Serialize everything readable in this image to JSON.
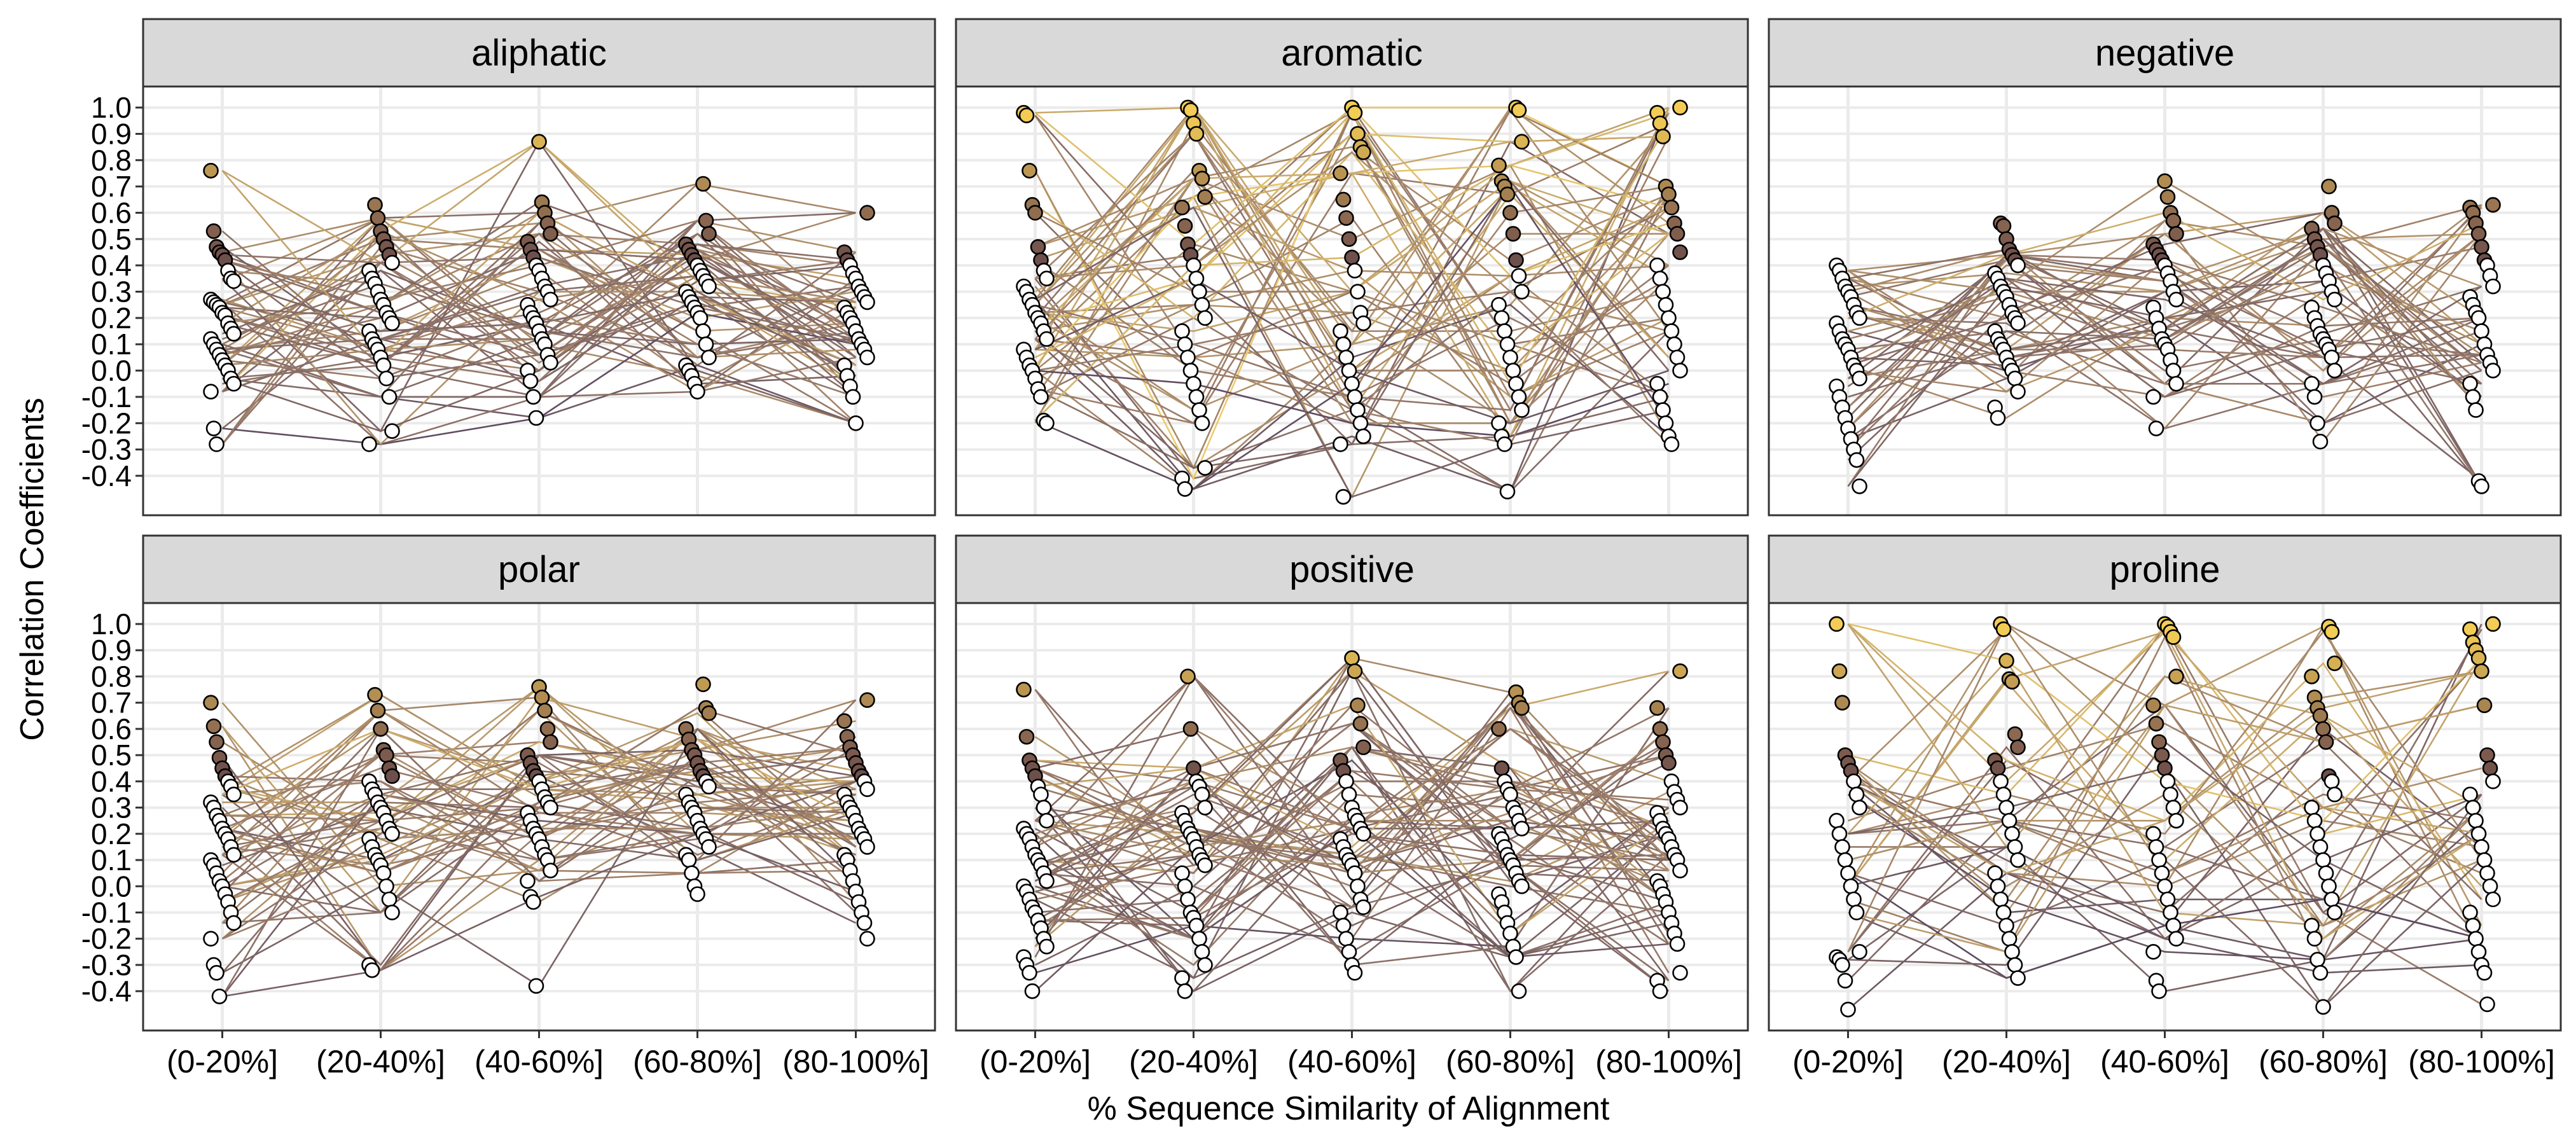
{
  "chart_data": {
    "type": "scatter",
    "layout": "faceted line-connected scatter, 2 rows x 3 columns",
    "xlabel": "% Sequence Similarity of Alignment",
    "ylabel": "Correlation Coefficients",
    "categories": [
      "(0-20%]",
      "(20-40%]",
      "(40-60%]",
      "(60-80%]",
      "(80-100%]"
    ],
    "y_ticks": [
      "1.0",
      "0.9",
      "0.8",
      "0.7",
      "0.6",
      "0.5",
      "0.4",
      "0.3",
      "0.2",
      "0.1",
      "0.0",
      "-0.1",
      "-0.2",
      "-0.3",
      "-0.4"
    ],
    "y_tick_values": [
      1.0,
      0.9,
      0.8,
      0.7,
      0.6,
      0.5,
      0.4,
      0.3,
      0.2,
      0.1,
      0.0,
      -0.1,
      -0.2,
      -0.3,
      -0.4
    ],
    "ylim": [
      -0.55,
      1.08
    ],
    "grid": true,
    "legend": "none",
    "colors": {
      "strip": "#d9d9d9",
      "panel_border": "#333333",
      "grid": "#ebebeb",
      "line_low": "#3f2a44",
      "line_mid": "#8a6650",
      "line_high": "#f2cc55",
      "point_nonsignificant": "#ffffff",
      "point_outline": "#000000"
    },
    "panels": [
      {
        "title": "aliphatic",
        "series_count": 60,
        "points_per_bin": [
          [
            0.76,
            0.53,
            0.47,
            0.45,
            0.44,
            0.42,
            0.38,
            0.35,
            0.34,
            0.27,
            0.26,
            0.25,
            0.24,
            0.22,
            0.21,
            0.18,
            0.16,
            0.14,
            0.12,
            0.1,
            0.08,
            0.06,
            0.04,
            0.02,
            0.0,
            -0.03,
            -0.05,
            -0.08,
            -0.22,
            -0.28
          ],
          [
            0.63,
            0.58,
            0.53,
            0.5,
            0.47,
            0.44,
            0.41,
            0.38,
            0.35,
            0.33,
            0.3,
            0.27,
            0.25,
            0.22,
            0.2,
            0.18,
            0.15,
            0.12,
            0.1,
            0.08,
            0.05,
            0.02,
            -0.03,
            -0.1,
            -0.23,
            -0.28
          ],
          [
            0.87,
            0.64,
            0.6,
            0.56,
            0.52,
            0.49,
            0.46,
            0.43,
            0.4,
            0.38,
            0.35,
            0.32,
            0.3,
            0.27,
            0.25,
            0.22,
            0.2,
            0.18,
            0.15,
            0.12,
            0.1,
            0.06,
            0.03,
            0.0,
            -0.04,
            -0.1,
            -0.18
          ],
          [
            0.71,
            0.57,
            0.52,
            0.48,
            0.46,
            0.44,
            0.42,
            0.4,
            0.38,
            0.36,
            0.34,
            0.32,
            0.3,
            0.28,
            0.26,
            0.24,
            0.22,
            0.2,
            0.15,
            0.1,
            0.05,
            0.02,
            0.0,
            -0.02,
            -0.05,
            -0.08
          ],
          [
            0.6,
            0.45,
            0.42,
            0.4,
            0.37,
            0.35,
            0.32,
            0.3,
            0.28,
            0.26,
            0.24,
            0.22,
            0.2,
            0.18,
            0.15,
            0.12,
            0.1,
            0.08,
            0.05,
            0.02,
            -0.02,
            -0.06,
            -0.1,
            -0.2
          ]
        ]
      },
      {
        "title": "aromatic",
        "series_count": 60,
        "points_per_bin": [
          [
            0.98,
            0.97,
            0.76,
            0.63,
            0.6,
            0.47,
            0.42,
            0.38,
            0.35,
            0.32,
            0.3,
            0.27,
            0.25,
            0.22,
            0.2,
            0.18,
            0.15,
            0.12,
            0.08,
            0.05,
            0.02,
            0.0,
            -0.03,
            -0.07,
            -0.1,
            -0.19,
            -0.2
          ],
          [
            1.0,
            0.99,
            0.94,
            0.9,
            0.76,
            0.73,
            0.66,
            0.62,
            0.55,
            0.48,
            0.44,
            0.4,
            0.35,
            0.3,
            0.25,
            0.2,
            0.15,
            0.1,
            0.05,
            0.0,
            -0.05,
            -0.1,
            -0.15,
            -0.2,
            -0.37,
            -0.41,
            -0.45
          ],
          [
            1.0,
            0.98,
            0.9,
            0.85,
            0.83,
            0.75,
            0.65,
            0.58,
            0.5,
            0.43,
            0.38,
            0.3,
            0.22,
            0.18,
            0.15,
            0.1,
            0.05,
            0.0,
            -0.05,
            -0.1,
            -0.15,
            -0.2,
            -0.25,
            -0.28,
            -0.48
          ],
          [
            1.0,
            0.99,
            0.87,
            0.78,
            0.72,
            0.7,
            0.67,
            0.6,
            0.52,
            0.42,
            0.36,
            0.3,
            0.25,
            0.2,
            0.15,
            0.1,
            0.05,
            0.0,
            -0.05,
            -0.1,
            -0.15,
            -0.2,
            -0.25,
            -0.28,
            -0.46
          ],
          [
            1.0,
            0.98,
            0.94,
            0.89,
            0.7,
            0.67,
            0.62,
            0.56,
            0.52,
            0.45,
            0.4,
            0.35,
            0.3,
            0.25,
            0.2,
            0.15,
            0.1,
            0.05,
            0.0,
            -0.05,
            -0.1,
            -0.15,
            -0.2,
            -0.25,
            -0.28
          ]
        ]
      },
      {
        "title": "negative",
        "series_count": 45,
        "points_per_bin": [
          [
            0.4,
            0.38,
            0.35,
            0.32,
            0.3,
            0.28,
            0.25,
            0.22,
            0.2,
            0.18,
            0.15,
            0.12,
            0.1,
            0.08,
            0.05,
            0.02,
            0.0,
            -0.03,
            -0.06,
            -0.1,
            -0.14,
            -0.18,
            -0.22,
            -0.26,
            -0.3,
            -0.34,
            -0.44
          ],
          [
            0.56,
            0.55,
            0.5,
            0.46,
            0.44,
            0.42,
            0.4,
            0.37,
            0.35,
            0.32,
            0.3,
            0.28,
            0.25,
            0.22,
            0.2,
            0.18,
            0.15,
            0.12,
            0.1,
            0.08,
            0.05,
            0.02,
            0.0,
            -0.03,
            -0.08,
            -0.14,
            -0.18
          ],
          [
            0.72,
            0.66,
            0.6,
            0.57,
            0.52,
            0.48,
            0.46,
            0.44,
            0.42,
            0.4,
            0.37,
            0.34,
            0.3,
            0.27,
            0.24,
            0.2,
            0.16,
            0.12,
            0.1,
            0.08,
            0.04,
            0.0,
            -0.05,
            -0.1,
            -0.22
          ],
          [
            0.7,
            0.6,
            0.56,
            0.54,
            0.5,
            0.47,
            0.44,
            0.4,
            0.37,
            0.34,
            0.3,
            0.27,
            0.24,
            0.2,
            0.17,
            0.14,
            0.12,
            0.1,
            0.08,
            0.05,
            0.0,
            -0.05,
            -0.1,
            -0.2,
            -0.27
          ],
          [
            0.63,
            0.62,
            0.6,
            0.56,
            0.52,
            0.47,
            0.42,
            0.4,
            0.36,
            0.32,
            0.28,
            0.25,
            0.22,
            0.2,
            0.15,
            0.1,
            0.06,
            0.03,
            0.0,
            -0.05,
            -0.1,
            -0.15,
            -0.42,
            -0.44
          ]
        ]
      },
      {
        "title": "polar",
        "series_count": 55,
        "points_per_bin": [
          [
            0.7,
            0.61,
            0.55,
            0.49,
            0.45,
            0.42,
            0.4,
            0.38,
            0.35,
            0.32,
            0.3,
            0.27,
            0.25,
            0.22,
            0.2,
            0.18,
            0.15,
            0.12,
            0.1,
            0.08,
            0.05,
            0.02,
            0.0,
            -0.03,
            -0.06,
            -0.1,
            -0.14,
            -0.2,
            -0.3,
            -0.33,
            -0.42
          ],
          [
            0.73,
            0.67,
            0.6,
            0.52,
            0.5,
            0.45,
            0.42,
            0.4,
            0.37,
            0.35,
            0.32,
            0.3,
            0.28,
            0.25,
            0.22,
            0.2,
            0.18,
            0.15,
            0.12,
            0.1,
            0.08,
            0.05,
            0.0,
            -0.05,
            -0.1,
            -0.3,
            -0.32
          ],
          [
            0.76,
            0.72,
            0.67,
            0.6,
            0.55,
            0.5,
            0.47,
            0.44,
            0.42,
            0.4,
            0.37,
            0.34,
            0.32,
            0.3,
            0.28,
            0.25,
            0.22,
            0.2,
            0.18,
            0.15,
            0.12,
            0.1,
            0.06,
            0.02,
            -0.04,
            -0.06,
            -0.38
          ],
          [
            0.77,
            0.68,
            0.66,
            0.6,
            0.56,
            0.52,
            0.5,
            0.47,
            0.44,
            0.42,
            0.4,
            0.38,
            0.35,
            0.32,
            0.3,
            0.28,
            0.25,
            0.22,
            0.2,
            0.18,
            0.15,
            0.12,
            0.1,
            0.05,
            0.0,
            -0.03
          ],
          [
            0.71,
            0.63,
            0.57,
            0.53,
            0.5,
            0.47,
            0.44,
            0.42,
            0.4,
            0.37,
            0.35,
            0.32,
            0.3,
            0.28,
            0.25,
            0.22,
            0.2,
            0.18,
            0.15,
            0.12,
            0.1,
            0.06,
            0.02,
            -0.02,
            -0.06,
            -0.1,
            -0.14,
            -0.2
          ]
        ]
      },
      {
        "title": "positive",
        "series_count": 60,
        "points_per_bin": [
          [
            0.75,
            0.57,
            0.48,
            0.45,
            0.42,
            0.38,
            0.35,
            0.3,
            0.25,
            0.22,
            0.2,
            0.18,
            0.15,
            0.12,
            0.1,
            0.08,
            0.05,
            0.02,
            0.0,
            -0.02,
            -0.05,
            -0.08,
            -0.1,
            -0.13,
            -0.16,
            -0.2,
            -0.23,
            -0.27,
            -0.3,
            -0.33,
            -0.4
          ],
          [
            0.8,
            0.6,
            0.45,
            0.4,
            0.38,
            0.35,
            0.3,
            0.28,
            0.25,
            0.22,
            0.2,
            0.18,
            0.15,
            0.12,
            0.1,
            0.08,
            0.05,
            0.0,
            -0.05,
            -0.1,
            -0.12,
            -0.15,
            -0.2,
            -0.25,
            -0.3,
            -0.35,
            -0.4
          ],
          [
            0.87,
            0.82,
            0.69,
            0.62,
            0.53,
            0.48,
            0.44,
            0.4,
            0.35,
            0.3,
            0.27,
            0.25,
            0.22,
            0.2,
            0.18,
            0.15,
            0.12,
            0.1,
            0.08,
            0.05,
            0.0,
            -0.05,
            -0.08,
            -0.1,
            -0.15,
            -0.2,
            -0.25,
            -0.3,
            -0.33
          ],
          [
            0.74,
            0.7,
            0.68,
            0.6,
            0.45,
            0.4,
            0.37,
            0.35,
            0.3,
            0.28,
            0.25,
            0.22,
            0.2,
            0.18,
            0.15,
            0.12,
            0.1,
            0.08,
            0.05,
            0.02,
            0.0,
            -0.03,
            -0.06,
            -0.1,
            -0.14,
            -0.18,
            -0.23,
            -0.27,
            -0.4
          ],
          [
            0.82,
            0.68,
            0.6,
            0.55,
            0.5,
            0.47,
            0.4,
            0.36,
            0.33,
            0.3,
            0.28,
            0.25,
            0.22,
            0.2,
            0.18,
            0.15,
            0.12,
            0.1,
            0.06,
            0.02,
            0.0,
            -0.03,
            -0.06,
            -0.1,
            -0.14,
            -0.18,
            -0.22,
            -0.33,
            -0.36,
            -0.4
          ]
        ]
      },
      {
        "title": "proline",
        "series_count": 40,
        "points_per_bin": [
          [
            1.0,
            0.82,
            0.7,
            0.5,
            0.47,
            0.44,
            0.4,
            0.35,
            0.3,
            0.25,
            0.2,
            0.15,
            0.1,
            0.05,
            0.0,
            -0.05,
            -0.1,
            -0.25,
            -0.27,
            -0.28,
            -0.3,
            -0.36,
            -0.47
          ],
          [
            1.0,
            0.98,
            0.86,
            0.79,
            0.78,
            0.58,
            0.53,
            0.48,
            0.45,
            0.4,
            0.35,
            0.3,
            0.25,
            0.2,
            0.15,
            0.1,
            0.05,
            0.0,
            -0.05,
            -0.1,
            -0.15,
            -0.2,
            -0.25,
            -0.3,
            -0.35
          ],
          [
            1.0,
            0.99,
            0.97,
            0.95,
            0.8,
            0.69,
            0.62,
            0.55,
            0.5,
            0.45,
            0.4,
            0.35,
            0.3,
            0.25,
            0.2,
            0.15,
            0.1,
            0.05,
            0.0,
            -0.05,
            -0.1,
            -0.15,
            -0.2,
            -0.25,
            -0.36,
            -0.4
          ],
          [
            0.99,
            0.97,
            0.85,
            0.8,
            0.72,
            0.68,
            0.65,
            0.6,
            0.55,
            0.42,
            0.4,
            0.35,
            0.3,
            0.25,
            0.2,
            0.15,
            0.1,
            0.05,
            0.0,
            -0.05,
            -0.1,
            -0.15,
            -0.2,
            -0.28,
            -0.33,
            -0.46
          ],
          [
            1.0,
            0.98,
            0.93,
            0.9,
            0.87,
            0.82,
            0.69,
            0.5,
            0.45,
            0.4,
            0.35,
            0.3,
            0.25,
            0.2,
            0.15,
            0.1,
            0.05,
            0.0,
            -0.05,
            -0.1,
            -0.15,
            -0.2,
            -0.25,
            -0.3,
            -0.33,
            -0.45
          ]
        ]
      }
    ]
  }
}
